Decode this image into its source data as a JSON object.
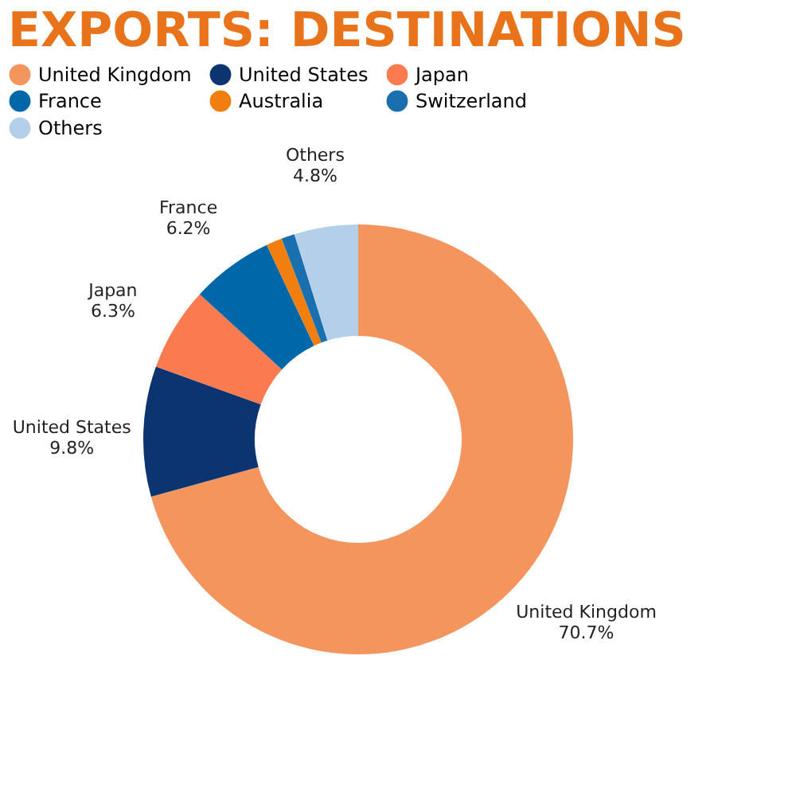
{
  "chart_data": {
    "type": "donut",
    "title": "EXPORTS: DESTINATIONS",
    "categories": [
      "United Kingdom",
      "United States",
      "Japan",
      "France",
      "Australia",
      "Switzerland",
      "Others"
    ],
    "values": [
      70.7,
      9.8,
      6.3,
      6.2,
      1.2,
      1.0,
      4.8
    ],
    "value_labels": [
      "70.7%",
      "9.8%",
      "6.3%",
      "6.2%",
      null,
      null,
      "4.8%"
    ],
    "colors": [
      "#f4955e",
      "#0b3470",
      "#f97b4f",
      "#0068a8",
      "#f07f0f",
      "#1a6fae",
      "#b3cfea"
    ],
    "legend": "top"
  }
}
